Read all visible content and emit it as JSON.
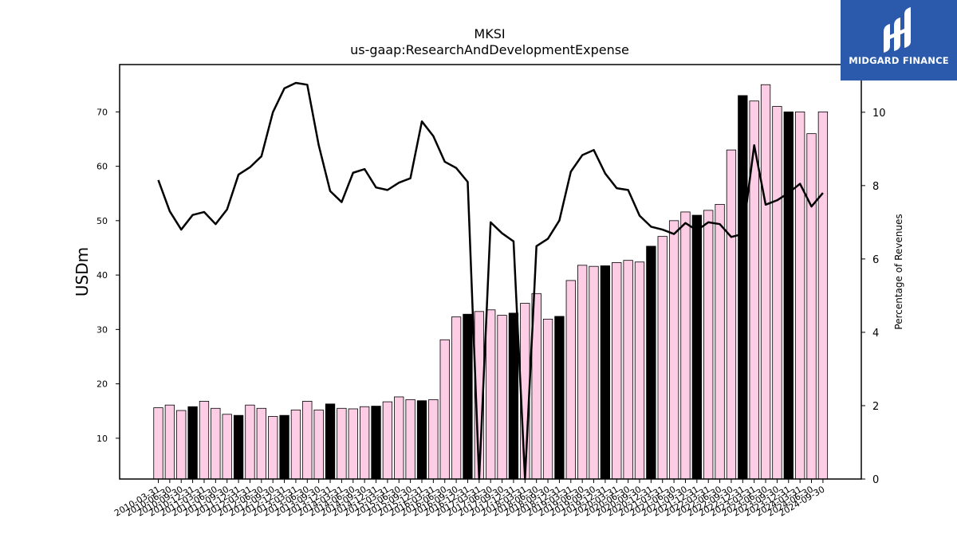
{
  "chart_data": {
    "type": "bar+line",
    "title": "MKSI",
    "subtitle": "us-gaap:ResearchAndDevelopmentExpense",
    "ylabel": "USDm",
    "y2label": "Percentage of Revenues",
    "ylim": [
      2.5,
      78.7
    ],
    "y2lim": [
      0,
      11.3
    ],
    "yticks": [
      10,
      20,
      30,
      40,
      50,
      60,
      70
    ],
    "y2ticks": [
      0,
      2,
      4,
      6,
      8,
      10
    ],
    "categories": [
      "2010-03-31",
      "2010-06-30",
      "2010-09-30",
      "2010-12-31",
      "2011-03-31",
      "2011-06-30",
      "2011-09-30",
      "2011-12-31",
      "2012-03-31",
      "2012-06-30",
      "2012-09-30",
      "2012-12-31",
      "2013-03-31",
      "2013-06-30",
      "2013-09-30",
      "2013-12-31",
      "2014-03-31",
      "2014-06-30",
      "2014-09-30",
      "2014-12-31",
      "2015-03-31",
      "2015-06-30",
      "2015-09-30",
      "2015-12-31",
      "2016-03-31",
      "2016-06-30",
      "2016-09-30",
      "2016-12-31",
      "2017-03-31",
      "2017-06-30",
      "2017-09-30",
      "2017-12-31",
      "2018-03-31",
      "2018-06-30",
      "2018-09-30",
      "2018-12-31",
      "2019-03-31",
      "2019-06-30",
      "2019-09-30",
      "2019-12-31",
      "2020-03-31",
      "2020-06-30",
      "2020-09-30",
      "2020-12-31",
      "2021-03-31",
      "2021-06-30",
      "2021-09-30",
      "2021-12-31",
      "2022-03-31",
      "2022-06-30",
      "2022-09-30",
      "2022-12-31",
      "2023-03-31",
      "2023-06-30",
      "2023-09-30",
      "2023-12-31",
      "2024-03-31",
      "2024-06-30",
      "2024-09-30"
    ],
    "series": [
      {
        "values": [
          15.6,
          16.1,
          15.1,
          15.8,
          16.8,
          15.5,
          14.4,
          14.2,
          16.1,
          15.5,
          14.0,
          14.2,
          15.2,
          16.8,
          15.2,
          16.3,
          15.5,
          15.4,
          15.8,
          15.9,
          16.7,
          17.6,
          17.1,
          16.9,
          17.1,
          28.1,
          32.3,
          32.8,
          33.3,
          33.6,
          32.6,
          33.0,
          34.8,
          36.6,
          31.9,
          32.4,
          39.0,
          41.8,
          41.6,
          41.7,
          42.3,
          42.7,
          42.4,
          45.3,
          47.1,
          50.0,
          51.6,
          51.0,
          51.9,
          53.0,
          63.0,
          73.0,
          72.0,
          75.0,
          71.0,
          70.0,
          70.0,
          66.0,
          70.0
        ],
        "highlight": [
          false,
          false,
          false,
          true,
          false,
          false,
          false,
          true,
          false,
          false,
          false,
          true,
          false,
          false,
          false,
          true,
          false,
          false,
          false,
          true,
          false,
          false,
          false,
          true,
          false,
          false,
          false,
          true,
          false,
          false,
          false,
          true,
          false,
          false,
          false,
          true,
          false,
          false,
          false,
          true,
          false,
          false,
          false,
          true,
          false,
          false,
          false,
          true,
          false,
          false,
          false,
          true,
          false,
          false,
          false,
          true,
          false,
          false,
          false
        ],
        "color": "#fccde5",
        "highlight_color": "#000000"
      },
      {
        "axis": "right",
        "values": [
          8.15,
          7.3,
          6.8,
          7.2,
          7.28,
          6.95,
          7.35,
          8.3,
          8.5,
          8.8,
          10.0,
          10.65,
          10.8,
          10.75,
          9.1,
          7.85,
          7.55,
          8.35,
          8.45,
          7.95,
          7.88,
          8.08,
          8.2,
          9.75,
          9.35,
          8.65,
          8.48,
          8.1,
          0.0,
          7.0,
          6.7,
          6.48,
          0.0,
          6.35,
          6.55,
          7.05,
          8.38,
          8.83,
          8.97,
          8.33,
          7.93,
          7.88,
          7.18,
          6.88,
          6.8,
          6.68,
          6.98,
          6.78,
          7.0,
          6.95,
          6.6,
          6.68,
          9.1,
          7.48,
          7.6,
          7.8,
          8.05,
          7.43,
          7.8
        ],
        "color": "#000000"
      }
    ]
  },
  "logo": {
    "text": "MIDGARD FINANCE",
    "background": "#2b5aad"
  }
}
